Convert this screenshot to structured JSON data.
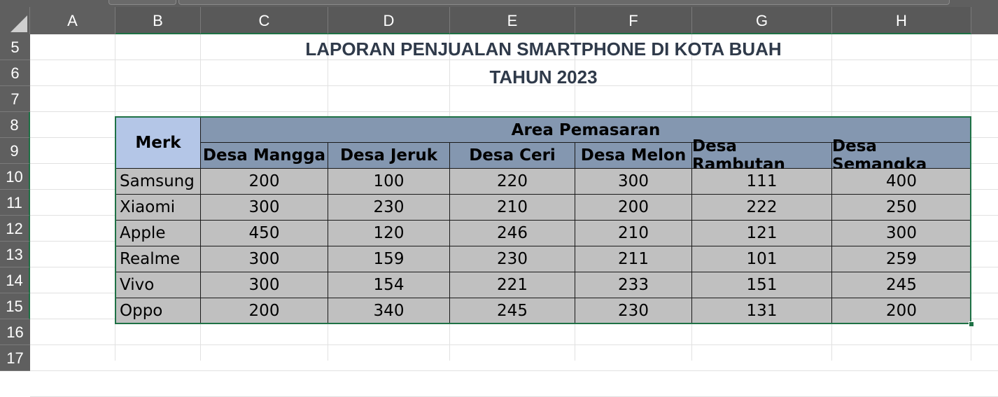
{
  "columns": [
    {
      "label": "A",
      "selected": false
    },
    {
      "label": "B",
      "selected": true
    },
    {
      "label": "C",
      "selected": true
    },
    {
      "label": "D",
      "selected": true
    },
    {
      "label": "E",
      "selected": true
    },
    {
      "label": "F",
      "selected": true
    },
    {
      "label": "G",
      "selected": true
    },
    {
      "label": "H",
      "selected": true
    }
  ],
  "rows": [
    "5",
    "6",
    "7",
    "8",
    "9",
    "10",
    "11",
    "12",
    "13",
    "14",
    "15",
    "16",
    "17"
  ],
  "title": {
    "line1": "LAPORAN PENJUALAN SMARTPHONE DI KOTA BUAH",
    "line2": "TAHUN 2023"
  },
  "table": {
    "merk_header": "Merk",
    "area_header": "Area Pemasaran",
    "areas": [
      "Desa Mangga",
      "Desa Jeruk",
      "Desa Ceri",
      "Desa Melon",
      "Desa Rambutan",
      "Desa Semangka"
    ],
    "rows": [
      {
        "merk": "Samsung",
        "values": [
          "200",
          "100",
          "220",
          "300",
          "111",
          "400"
        ]
      },
      {
        "merk": "Xiaomi",
        "values": [
          "300",
          "230",
          "210",
          "200",
          "222",
          "250"
        ]
      },
      {
        "merk": "Apple",
        "values": [
          "450",
          "120",
          "246",
          "210",
          "121",
          "300"
        ]
      },
      {
        "merk": "Realme",
        "values": [
          "300",
          "159",
          "230",
          "211",
          "101",
          "259"
        ]
      },
      {
        "merk": "Vivo",
        "values": [
          "300",
          "154",
          "221",
          "233",
          "151",
          "245"
        ]
      },
      {
        "merk": "Oppo",
        "values": [
          "200",
          "340",
          "245",
          "230",
          "131",
          "200"
        ]
      }
    ]
  },
  "colors": {
    "merk_header_bg": "#b4c6e7",
    "area_header_bg": "#8497b0",
    "data_bg": "#c0c0c0",
    "selection": "#1e7145"
  }
}
